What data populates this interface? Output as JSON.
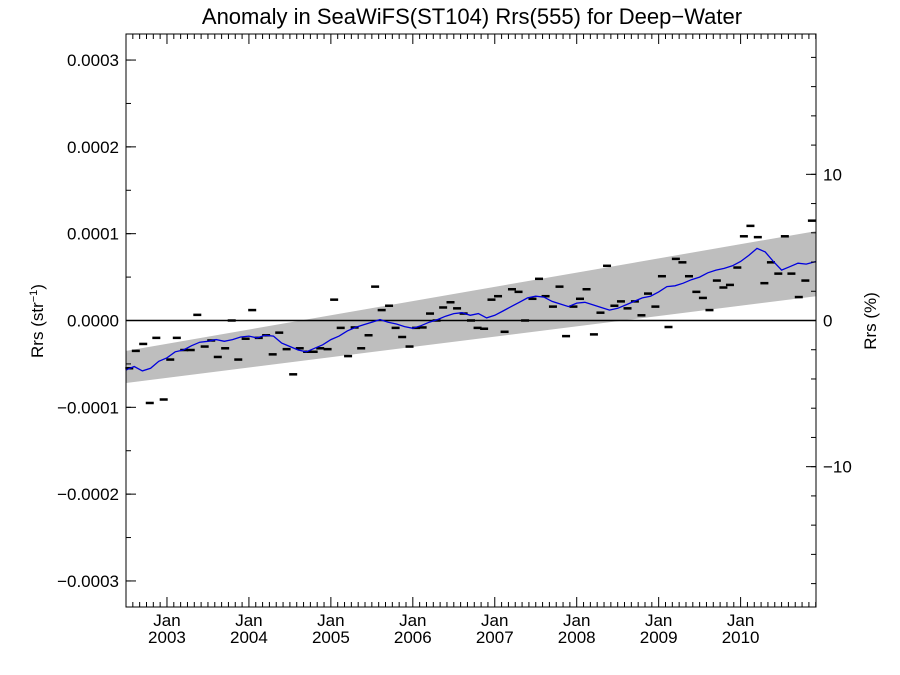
{
  "chart_data": {
    "type": "scatter",
    "title": "Anomaly in SeaWiFS(ST104) Rrs(555) for Deep−Water",
    "ylabel_main": "Rrs (str",
    "ylabel_sup": "−1",
    "ylabel_tail": ")",
    "y2label": "Rrs (%)",
    "xlim": [
      2002.5,
      2010.92
    ],
    "ylim": [
      -0.00033,
      0.00033
    ],
    "y2lim": [
      -19.6,
      19.6
    ],
    "yticks": [
      {
        "v": 0.0003,
        "label": "0.0003"
      },
      {
        "v": 0.0002,
        "label": "0.0002"
      },
      {
        "v": 0.0001,
        "label": "0.0001"
      },
      {
        "v": 0.0,
        "label": "0.0000"
      },
      {
        "v": -0.0001,
        "label": "−0.0001"
      },
      {
        "v": -0.0002,
        "label": "−0.0002"
      },
      {
        "v": -0.0003,
        "label": "−0.0003"
      }
    ],
    "y2ticks": [
      {
        "v": 10,
        "label": "10"
      },
      {
        "v": 0,
        "label": "0"
      },
      {
        "v": -10,
        "label": "−10"
      }
    ],
    "xticks": [
      {
        "v": 2003.0,
        "month": "Jan",
        "year": "2003"
      },
      {
        "v": 2004.0,
        "month": "Jan",
        "year": "2004"
      },
      {
        "v": 2005.0,
        "month": "Jan",
        "year": "2005"
      },
      {
        "v": 2006.0,
        "month": "Jan",
        "year": "2006"
      },
      {
        "v": 2007.0,
        "month": "Jan",
        "year": "2007"
      },
      {
        "v": 2008.0,
        "month": "Jan",
        "year": "2008"
      },
      {
        "v": 2009.0,
        "month": "Jan",
        "year": "2009"
      },
      {
        "v": 2010.0,
        "month": "Jan",
        "year": "2010"
      }
    ],
    "band": {
      "x": [
        2002.5,
        2010.92
      ],
      "upper": [
        -3.5e-05,
        0.000103
      ],
      "lower": [
        -7.2e-05,
        2.8e-05
      ],
      "color": "#bebebe"
    },
    "zero_line": 0.0,
    "points": {
      "color": "#000000",
      "x": [
        2002.54,
        2002.62,
        2002.71,
        2002.79,
        2002.87,
        2002.96,
        2003.04,
        2003.12,
        2003.21,
        2003.29,
        2003.37,
        2003.46,
        2003.54,
        2003.62,
        2003.71,
        2003.79,
        2003.87,
        2003.96,
        2004.04,
        2004.12,
        2004.21,
        2004.29,
        2004.37,
        2004.46,
        2004.54,
        2004.62,
        2004.71,
        2004.79,
        2004.87,
        2004.96,
        2005.04,
        2005.12,
        2005.21,
        2005.29,
        2005.37,
        2005.46,
        2005.54,
        2005.62,
        2005.71,
        2005.79,
        2005.87,
        2005.96,
        2006.04,
        2006.12,
        2006.21,
        2006.29,
        2006.37,
        2006.46,
        2006.54,
        2006.62,
        2006.71,
        2006.79,
        2006.87,
        2006.96,
        2007.04,
        2007.12,
        2007.21,
        2007.29,
        2007.37,
        2007.46,
        2007.54,
        2007.62,
        2007.71,
        2007.79,
        2007.87,
        2007.96,
        2008.04,
        2008.12,
        2008.21,
        2008.29,
        2008.37,
        2008.46,
        2008.54,
        2008.62,
        2008.71,
        2008.79,
        2008.87,
        2008.96,
        2009.04,
        2009.12,
        2009.21,
        2009.29,
        2009.37,
        2009.46,
        2009.54,
        2009.62,
        2009.71,
        2009.79,
        2009.87,
        2009.96,
        2010.04,
        2010.12,
        2010.21,
        2010.29,
        2010.37,
        2010.46,
        2010.54,
        2010.62,
        2010.71,
        2010.79,
        2010.87
      ],
      "y": [
        -5.5e-05,
        -3.5e-05,
        -2.7e-05,
        -9.5e-05,
        -2e-05,
        -9.1e-05,
        -4.5e-05,
        -2e-05,
        -3.4e-05,
        -3.4e-05,
        6.5e-06,
        -3e-05,
        -2.3e-05,
        -4.2e-05,
        -3.2e-05,
        0.0,
        -4.5e-05,
        -2.1e-05,
        1.2e-05,
        -2e-05,
        -1.7e-05,
        -3.9e-05,
        -1.4e-05,
        -3.3e-05,
        -6.2e-05,
        -3.2e-05,
        -3.6e-05,
        -3.6e-05,
        -3.2e-05,
        -3.3e-05,
        2.4e-05,
        -8.5e-06,
        -4.1e-05,
        -8e-06,
        -3.2e-05,
        -1.7e-05,
        3.9e-05,
        1.2e-05,
        1.7e-05,
        -8.5e-06,
        -1.9e-05,
        -3e-05,
        -8.5e-06,
        -8e-06,
        8e-06,
        0.0,
        1.5e-05,
        2.1e-05,
        1.4e-05,
        8e-06,
        0.0,
        -8.5e-06,
        -9.5e-06,
        2.4e-05,
        2.8e-05,
        -1.3e-05,
        3.6e-05,
        3.3e-05,
        0.0,
        2.5e-05,
        4.8e-05,
        2.8e-05,
        1.6e-05,
        3.9e-05,
        -1.8e-05,
        1.6e-05,
        2.5e-05,
        3.6e-05,
        -1.6e-05,
        9e-06,
        6.3e-05,
        1.7e-05,
        2.2e-05,
        1.4e-05,
        2.2e-05,
        6e-06,
        3.1e-05,
        1.6e-05,
        5.1e-05,
        -7.5e-06,
        7.1e-05,
        6.7e-05,
        5.1e-05,
        3.3e-05,
        2.6e-05,
        1.2e-05,
        4.6e-05,
        3.8e-05,
        4.1e-05,
        6.1e-05,
        9.7e-05,
        0.000109,
        9.6e-05,
        4.3e-05,
        6.7e-05,
        5.4e-05,
        9.7e-05,
        5.4e-05,
        2.7e-05,
        4.6e-05,
        0.000115
      ]
    },
    "smooth": {
      "color": "#0000dd",
      "x": [
        2002.5,
        2002.6,
        2002.7,
        2002.8,
        2002.9,
        2003.0,
        2003.1,
        2003.2,
        2003.3,
        2003.4,
        2003.5,
        2003.6,
        2003.7,
        2003.8,
        2003.9,
        2004.0,
        2004.1,
        2004.2,
        2004.3,
        2004.4,
        2004.5,
        2004.6,
        2004.7,
        2004.8,
        2004.9,
        2005.0,
        2005.1,
        2005.2,
        2005.3,
        2005.4,
        2005.5,
        2005.6,
        2005.7,
        2005.8,
        2005.9,
        2006.0,
        2006.1,
        2006.2,
        2006.3,
        2006.4,
        2006.5,
        2006.6,
        2006.7,
        2006.8,
        2006.9,
        2007.0,
        2007.1,
        2007.2,
        2007.3,
        2007.4,
        2007.5,
        2007.6,
        2007.7,
        2007.8,
        2007.9,
        2008.0,
        2008.1,
        2008.2,
        2008.3,
        2008.4,
        2008.5,
        2008.6,
        2008.7,
        2008.8,
        2008.9,
        2009.0,
        2009.1,
        2009.2,
        2009.3,
        2009.4,
        2009.5,
        2009.6,
        2009.7,
        2009.8,
        2009.9,
        2010.0,
        2010.1,
        2010.2,
        2010.3,
        2010.4,
        2010.5,
        2010.6,
        2010.7,
        2010.8,
        2010.92
      ],
      "y": [
        -5.7e-05,
        -5.3e-05,
        -5.8e-05,
        -5.5e-05,
        -4.7e-05,
        -4.3e-05,
        -3.6e-05,
        -3.4e-05,
        -2.9e-05,
        -2.5e-05,
        -2.4e-05,
        -2.2e-05,
        -2.4e-05,
        -2.2e-05,
        -1.9e-05,
        -1.8e-05,
        -2e-05,
        -1.7e-05,
        -1.8e-05,
        -2.6e-05,
        -3e-05,
        -3.4e-05,
        -3.6e-05,
        -3.2e-05,
        -2.8e-05,
        -2.2e-05,
        -1.8e-05,
        -1.2e-05,
        -8e-06,
        -5e-06,
        -2e-06,
        1e-06,
        -2e-06,
        -4e-06,
        -7e-06,
        -9e-06,
        -6e-06,
        -2e-06,
        1e-06,
        5e-06,
        8e-06,
        9e-06,
        6e-06,
        8e-06,
        3e-06,
        6e-06,
        1.1e-05,
        1.6e-05,
        2.1e-05,
        2.6e-05,
        2.8e-05,
        2.7e-05,
        2.2e-05,
        1.9e-05,
        1.6e-05,
        2e-05,
        2.1e-05,
        1.8e-05,
        1.5e-05,
        1.2e-05,
        1.4e-05,
        1.8e-05,
        2.2e-05,
        2.6e-05,
        2.8e-05,
        3.3e-05,
        3.9e-05,
        4e-05,
        4.3e-05,
        4.7e-05,
        5e-05,
        5.5e-05,
        5.8e-05,
        6e-05,
        6.3e-05,
        6.8e-05,
        7.5e-05,
        8.3e-05,
        7.9e-05,
        6.8e-05,
        5.8e-05,
        6.2e-05,
        6.6e-05,
        6.5e-05,
        6.8e-05
      ]
    }
  }
}
